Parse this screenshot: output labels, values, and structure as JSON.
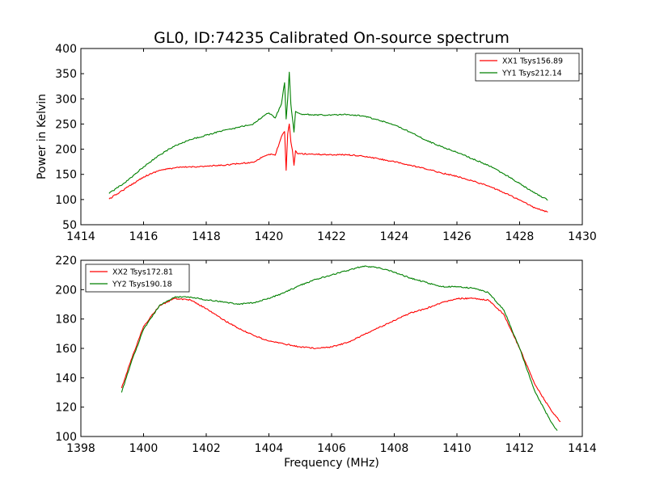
{
  "figure_title": "GL0, ID:74235 Calibrated On-source spectrum",
  "chart_data": [
    {
      "type": "line",
      "title": "",
      "xlabel": "",
      "ylabel": "Power in Kelvin",
      "xlim": [
        1414,
        1430
      ],
      "ylim": [
        50,
        400
      ],
      "xticks": [
        1414,
        1416,
        1418,
        1420,
        1422,
        1424,
        1426,
        1428,
        1430
      ],
      "yticks": [
        50,
        100,
        150,
        200,
        250,
        300,
        350,
        400
      ],
      "grid": false,
      "legend_position": "top-right",
      "series": [
        {
          "name": "XX1 Tsys156.89",
          "color": "#ff0000",
          "x": [
            1414.9,
            1415.5,
            1416.0,
            1416.5,
            1417.0,
            1417.5,
            1418.0,
            1418.5,
            1419.0,
            1419.5,
            1419.8,
            1420.0,
            1420.2,
            1420.4,
            1420.5,
            1420.55,
            1420.6,
            1420.65,
            1420.7,
            1420.75,
            1420.8,
            1420.85,
            1420.9,
            1421.0,
            1421.5,
            1422.0,
            1422.5,
            1423.0,
            1423.5,
            1424.0,
            1424.5,
            1425.0,
            1425.5,
            1426.0,
            1426.5,
            1427.0,
            1427.5,
            1428.0,
            1428.5,
            1428.9
          ],
          "values": [
            101,
            125,
            145,
            158,
            163,
            165,
            166,
            168,
            171,
            174,
            185,
            190,
            188,
            225,
            235,
            158,
            230,
            250,
            215,
            198,
            168,
            197,
            192,
            191,
            190,
            189,
            189,
            186,
            181,
            175,
            168,
            161,
            153,
            146,
            137,
            127,
            114,
            99,
            83,
            75
          ]
        },
        {
          "name": "YY1 Tsys212.14",
          "color": "#008000",
          "x": [
            1414.9,
            1415.5,
            1416.0,
            1416.5,
            1417.0,
            1417.5,
            1418.0,
            1418.5,
            1419.0,
            1419.5,
            1419.8,
            1420.0,
            1420.2,
            1420.4,
            1420.5,
            1420.55,
            1420.6,
            1420.65,
            1420.7,
            1420.75,
            1420.8,
            1420.85,
            1420.9,
            1421.0,
            1421.5,
            1422.0,
            1422.5,
            1423.0,
            1423.5,
            1424.0,
            1424.5,
            1425.0,
            1425.5,
            1426.0,
            1426.5,
            1427.0,
            1427.5,
            1428.0,
            1428.5,
            1428.9
          ],
          "values": [
            112,
            138,
            165,
            188,
            207,
            219,
            228,
            236,
            243,
            250,
            265,
            272,
            262,
            290,
            332,
            260,
            300,
            353,
            290,
            262,
            234,
            275,
            273,
            270,
            268,
            268,
            269,
            266,
            258,
            248,
            234,
            218,
            205,
            194,
            181,
            168,
            151,
            132,
            112,
            99
          ]
        }
      ]
    },
    {
      "type": "line",
      "title": "",
      "xlabel": "Frequency (MHz)",
      "ylabel": "",
      "xlim": [
        1398,
        1414
      ],
      "ylim": [
        100,
        220
      ],
      "xticks": [
        1398,
        1400,
        1402,
        1404,
        1406,
        1408,
        1410,
        1412,
        1414
      ],
      "yticks": [
        100,
        120,
        140,
        160,
        180,
        200,
        220
      ],
      "grid": false,
      "legend_position": "top-left",
      "series": [
        {
          "name": "XX2 Tsys172.81",
          "color": "#ff0000",
          "x": [
            1399.3,
            1399.6,
            1400.0,
            1400.5,
            1401.0,
            1401.5,
            1402.0,
            1402.5,
            1403.0,
            1403.5,
            1404.0,
            1404.5,
            1405.0,
            1405.5,
            1406.0,
            1406.5,
            1407.0,
            1407.5,
            1408.0,
            1408.5,
            1409.0,
            1409.5,
            1410.0,
            1410.5,
            1411.0,
            1411.5,
            1412.0,
            1412.5,
            1413.0,
            1413.3
          ],
          "values": [
            133,
            152,
            175,
            189,
            194,
            193,
            187,
            180,
            174,
            169,
            165,
            163,
            161,
            160,
            161,
            164,
            169,
            174,
            179,
            184,
            187,
            191,
            194,
            194,
            193,
            183,
            160,
            135,
            118,
            110
          ]
        },
        {
          "name": "YY2 Tsys190.18",
          "color": "#008000",
          "x": [
            1399.3,
            1399.6,
            1400.0,
            1400.5,
            1401.0,
            1401.5,
            1402.0,
            1402.5,
            1403.0,
            1403.5,
            1404.0,
            1404.5,
            1405.0,
            1405.5,
            1406.0,
            1406.5,
            1407.0,
            1407.5,
            1408.0,
            1408.5,
            1409.0,
            1409.5,
            1410.0,
            1410.5,
            1411.0,
            1411.5,
            1412.0,
            1412.5,
            1413.0,
            1413.2
          ],
          "values": [
            130,
            150,
            173,
            189,
            195,
            195,
            193,
            192,
            190,
            191,
            194,
            198,
            203,
            207,
            210,
            213,
            216,
            215,
            212,
            208,
            205,
            202,
            202,
            201,
            198,
            186,
            160,
            130,
            110,
            104
          ]
        }
      ]
    }
  ]
}
